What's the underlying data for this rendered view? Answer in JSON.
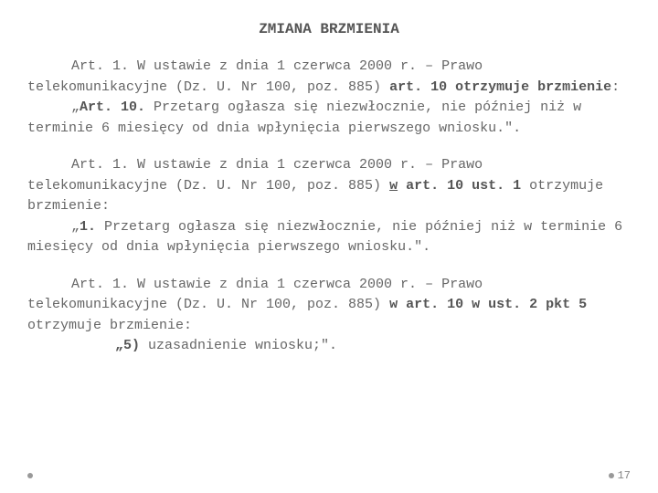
{
  "title": "ZMIANA BRZMIENIA",
  "para1": {
    "a": "Art. 1. W ustawie z dnia 1 czerwca 2000 r. – Prawo telekomunikacyjne (Dz. U. Nr 100, poz. 885) ",
    "b": "art. 10 otrzymuje brzmienie",
    "c": ":",
    "d": "„",
    "e": "Art. 10.",
    "f": " Przetarg ogłasza się niezwłocznie, nie później niż w terminie 6  miesięcy od dnia wpłynięcia pierwszego wniosku.\". "
  },
  "para2": {
    "a": "Art. 1. W ustawie z dnia 1 czerwca 2000 r. – Prawo telekomunikacyjne (Dz. U. Nr 100, poz. 885) ",
    "w": "w",
    "b": " art. 10 ust. 1 ",
    "c": "otrzymuje brzmienie:",
    "d": "„",
    "e": "1.",
    "f": " Przetarg ogłasza się niezwłocznie, nie później niż w terminie 6  miesięcy od dnia wpłynięcia pierwszego wniosku.\". "
  },
  "para3": {
    "a": "Art. 1. W ustawie z dnia 1 czerwca 2000 r. – Prawo telekomunikacyjne (Dz. U. Nr 100, poz. 885) ",
    "b": "w art. 10 w ust. 2 pkt 5 ",
    "c": "otrzymuje brzmienie:",
    "d": "„5)",
    "e": " uzasadnienie wniosku;\". "
  },
  "pageNumber": "17"
}
